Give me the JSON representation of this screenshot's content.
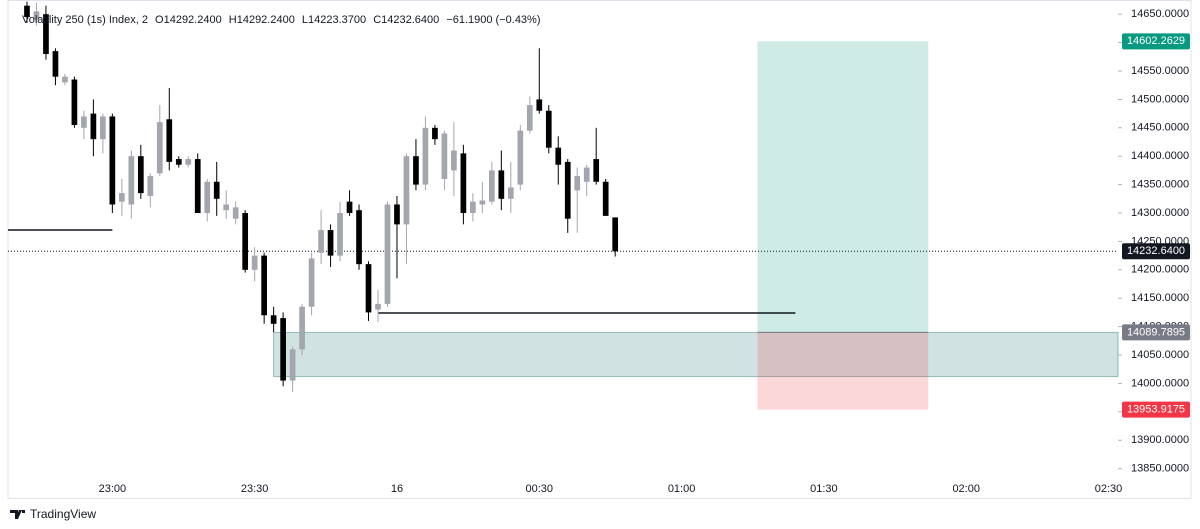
{
  "chart_data": {
    "type": "candlestick",
    "header": {
      "symbol": "Volatility 250 (1s) Index, 2",
      "open": "O14292.2400",
      "high": "H14292.2400",
      "low": "L14223.3700",
      "close": "C14232.6400",
      "change": "−61.1900 (−0.43%)"
    },
    "x": [
      "22:42",
      "22:44",
      "22:46",
      "22:48",
      "22:50",
      "22:52",
      "22:54",
      "22:56",
      "22:58",
      "23:00",
      "23:02",
      "23:04",
      "23:06",
      "23:08",
      "23:10",
      "23:12",
      "23:14",
      "23:16",
      "23:18",
      "23:20",
      "23:22",
      "23:24",
      "23:26",
      "23:28",
      "23:30",
      "23:32",
      "23:34",
      "23:36",
      "23:38",
      "23:40",
      "23:42",
      "23:44",
      "23:46",
      "23:48",
      "23:50",
      "23:52",
      "23:54",
      "23:56",
      "23:58",
      "00:00",
      "00:02",
      "00:04",
      "00:06",
      "00:08",
      "00:10",
      "00:12",
      "00:14",
      "00:16",
      "00:18",
      "00:20",
      "00:22",
      "00:24",
      "00:26",
      "00:28",
      "00:30",
      "00:32",
      "00:34",
      "00:36",
      "00:38",
      "00:40",
      "00:42",
      "00:44",
      "00:46"
    ],
    "open": [
      14665,
      14640,
      14650,
      14585,
      14530,
      14535,
      14450,
      14475,
      14430,
      14470,
      14320,
      14315,
      14400,
      14330,
      14370,
      14465,
      14395,
      14385,
      14395,
      14300,
      14355,
      14305,
      14290,
      14300,
      14200,
      14225,
      14120,
      14115,
      14005,
      14060,
      14135,
      14230,
      14270,
      14225,
      14320,
      14305,
      14210,
      14130,
      14140,
      14315,
      14280,
      14400,
      14350,
      14450,
      14360,
      14375,
      14405,
      14300,
      14315,
      14320,
      14375,
      14325,
      14350,
      14445,
      14500,
      14480,
      14415,
      14390,
      14340,
      14355,
      14395,
      14355,
      14292.24
    ],
    "high": [
      14672,
      14670,
      14665,
      14590,
      14545,
      14540,
      14480,
      14500,
      14475,
      14475,
      14360,
      14410,
      14420,
      14370,
      14490,
      14520,
      14400,
      14400,
      14405,
      14360,
      14390,
      14340,
      14320,
      14305,
      14240,
      14230,
      14135,
      14125,
      14065,
      14140,
      14230,
      14305,
      14280,
      14320,
      14340,
      14315,
      14215,
      14165,
      14320,
      14330,
      14405,
      14430,
      14470,
      14455,
      14445,
      14460,
      14420,
      14335,
      14355,
      14390,
      14410,
      14390,
      14455,
      14505,
      14590,
      14490,
      14435,
      14395,
      14380,
      14385,
      14450,
      14360,
      14292.24
    ],
    "low": [
      14635,
      14630,
      14570,
      14525,
      14525,
      14450,
      14430,
      14400,
      14405,
      14300,
      14295,
      14290,
      14325,
      14310,
      14365,
      14375,
      14380,
      14380,
      14300,
      14285,
      14295,
      14290,
      14280,
      14195,
      14180,
      14105,
      14090,
      13995,
      13985,
      14050,
      14120,
      14210,
      14205,
      14215,
      14295,
      14200,
      14110,
      14108,
      14135,
      14185,
      14210,
      14340,
      14340,
      14420,
      14340,
      14330,
      14280,
      14285,
      14300,
      14315,
      14305,
      14300,
      14340,
      14440,
      14475,
      14405,
      14350,
      14265,
      14265,
      14330,
      14350,
      14295,
      14223.37
    ],
    "close": [
      14645,
      14655,
      14580,
      14540,
      14540,
      14455,
      14470,
      14430,
      14470,
      14315,
      14335,
      14400,
      14335,
      14365,
      14460,
      14390,
      14385,
      14395,
      14300,
      14355,
      14325,
      14315,
      14310,
      14200,
      14225,
      14120,
      14105,
      14005,
      14060,
      14135,
      14220,
      14270,
      14225,
      14300,
      14300,
      14210,
      14125,
      14140,
      14315,
      14280,
      14400,
      14350,
      14450,
      14430,
      14440,
      14410,
      14300,
      14320,
      14322,
      14375,
      14325,
      14345,
      14445,
      14490,
      14480,
      14415,
      14385,
      14290,
      14365,
      14380,
      14355,
      14295,
      14232.64
    ],
    "up_color": "#a3a6ae",
    "down_color": "#000000",
    "xlim": [
      "22:38",
      "02:32"
    ],
    "xticks": [
      "23:00",
      "23:30",
      {
        "value": "00:00",
        "label": "16"
      },
      "00:30",
      "01:00",
      "01:30",
      "02:00",
      "02:30"
    ],
    "ylim": [
      13837,
      14675
    ],
    "yticks": [
      {
        "value": 13850,
        "label": "13850.0000"
      },
      {
        "value": 13900,
        "label": "13900.0000"
      },
      {
        "value": 13950,
        "label": "13950.0000"
      },
      {
        "value": 14000,
        "label": "14000.0000"
      },
      {
        "value": 14050,
        "label": "14050.0000"
      },
      {
        "value": 14100,
        "label": "14100.0000"
      },
      {
        "value": 14150,
        "label": "14150.0000"
      },
      {
        "value": 14200,
        "label": "14200.0000"
      },
      {
        "value": 14250,
        "label": "14250.0000"
      },
      {
        "value": 14300,
        "label": "14300.0000"
      },
      {
        "value": 14350,
        "label": "14350.0000"
      },
      {
        "value": 14400,
        "label": "14400.0000"
      },
      {
        "value": 14450,
        "label": "14450.0000"
      },
      {
        "value": 14500,
        "label": "14500.0000"
      },
      {
        "value": 14550,
        "label": "14550.0000"
      },
      {
        "value": 14600,
        "label": "14600.0000"
      },
      {
        "value": 14650,
        "label": "14650.0000"
      }
    ],
    "grid": false,
    "last_price": {
      "value": 14232.64,
      "label": "14232.6400"
    },
    "lines": [
      {
        "x": [
          "22:38",
          "23:00"
        ],
        "y": 14270
      },
      {
        "x": [
          "23:56",
          "01:24"
        ],
        "y": 14124
      }
    ],
    "zone": {
      "x": [
        "23:34",
        "02:32"
      ],
      "y": [
        14012,
        14089.7895
      ]
    },
    "position": {
      "x": [
        "01:16",
        "01:52"
      ],
      "target": 14602.2629,
      "entry": 14089.7895,
      "stop": 13953.9175,
      "target_color": "#089981",
      "entry_color": "#787b86",
      "stop_color": "#f23645"
    }
  },
  "branding": "TradingView"
}
